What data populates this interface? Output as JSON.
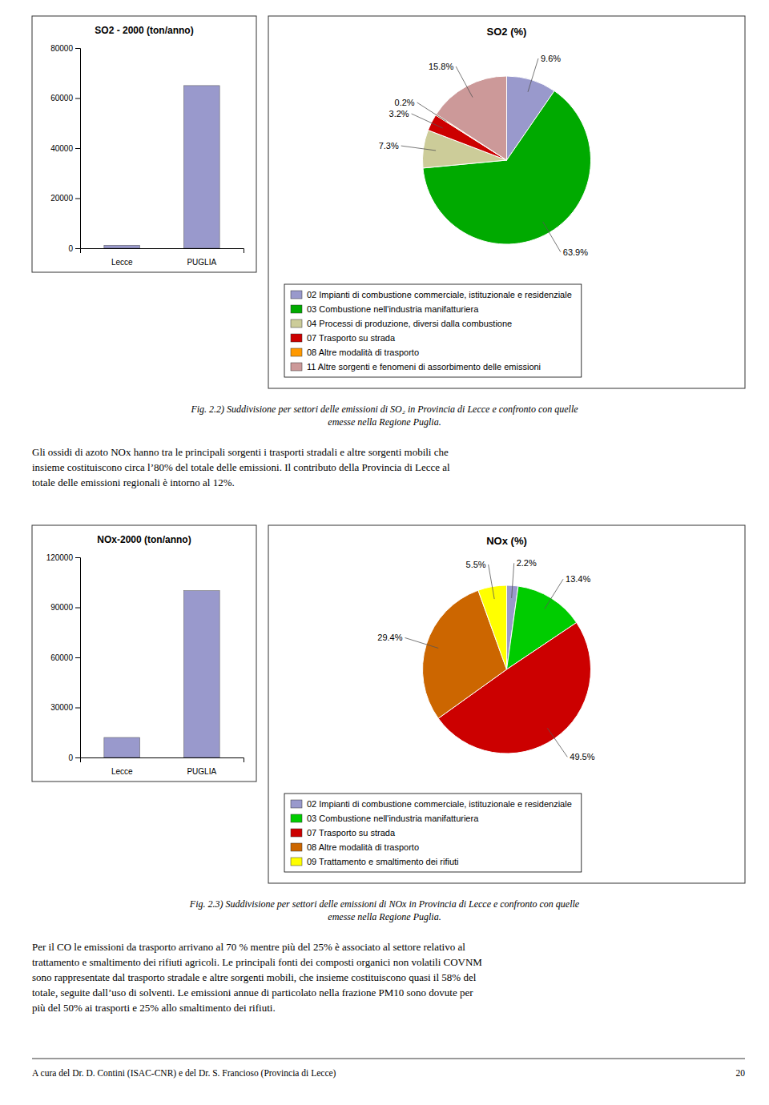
{
  "chart_data": [
    {
      "type": "bar",
      "title": "SO2 - 2000 (ton/anno)",
      "categories": [
        "Lecce",
        "PUGLIA"
      ],
      "values": [
        1200,
        65000
      ],
      "color": "#9999cc",
      "ylim": [
        0,
        80000
      ],
      "yticks": [
        0,
        20000,
        40000,
        60000,
        80000
      ],
      "grid": false
    },
    {
      "type": "pie",
      "title": "SO2 (%)",
      "categories": [
        "02 Impianti di combustione commerciale, istituzionale e residenziale",
        "03 Combustione nell'industria manifatturiera",
        "04 Processi di produzione, diversi dalla combustione",
        "07 Trasporto su strada",
        "08 Altre modalità di trasporto",
        "11 Altre sorgenti e fenomeni di assorbimento delle emissioni"
      ],
      "values": [
        9.6,
        63.9,
        7.3,
        3.2,
        0.2,
        15.8
      ],
      "value_labels": [
        "9.6%",
        "63.9%",
        "7.3%",
        "3.2%",
        "0.2%",
        "15.8%"
      ],
      "colors": [
        "#9999cc",
        "#00aa00",
        "#cccc99",
        "#cc0000",
        "#ff9900",
        "#cc9999"
      ],
      "data_labels": true,
      "legend": "bottom"
    },
    {
      "type": "bar",
      "title": "NOx-2000 (ton/anno)",
      "categories": [
        "Lecce",
        "PUGLIA"
      ],
      "values": [
        12000,
        100000
      ],
      "color": "#9999cc",
      "ylim": [
        0,
        120000
      ],
      "yticks": [
        0,
        30000,
        60000,
        90000,
        120000
      ],
      "grid": false
    },
    {
      "type": "pie",
      "title": "NOx (%)",
      "categories": [
        "02 Impianti di combustione commerciale, istituzionale e residenziale",
        "03 Combustione nell'industria manifatturiera",
        "07 Trasporto su strada",
        "08 Altre modalità di trasporto",
        "09 Trattamento e smaltimento dei rifiuti"
      ],
      "values": [
        2.2,
        13.4,
        49.5,
        29.4,
        5.5
      ],
      "value_labels": [
        "2.2%",
        "13.4%",
        "49.5%",
        "29.4%",
        "5.5%"
      ],
      "colors": [
        "#9999cc",
        "#00cc00",
        "#cc0000",
        "#cc6600",
        "#ffff00"
      ],
      "data_labels": true,
      "legend": "bottom"
    }
  ],
  "captions": [
    [
      "Fig. 2.2) Suddivisione per settori delle emissioni di SO₂ in Provincia di Lecce e confronto con quelle",
      "emesse nella Regione Puglia."
    ],
    [
      "Fig. 2.3) Suddivisione per settori delle emissioni di NOx in Provincia di Lecce e confronto con quelle",
      "emesse nella Regione Puglia."
    ]
  ],
  "paragraphs": [
    [
      "Gli ossidi di azoto NOx hanno tra le principali sorgenti i trasporti stradali e altre sorgenti mobili che",
      "insieme costituiscono circa l’80% del totale delle emissioni. Il contributo della Provincia di Lecce al",
      "totale delle emissioni regionali è intorno al 12%."
    ],
    [
      "Per il CO le emissioni da trasporto arrivano al 70 % mentre più del 25% è associato al settore relativo al",
      "trattamento e smaltimento dei rifiuti agricoli. Le principali fonti dei composti organici non volatili COVNM",
      "sono rappresentate dal trasporto stradale e altre sorgenti mobili, che insieme costituiscono quasi il 58% del",
      "totale, seguite dall’uso di solventi. Le emissioni annue di particolato nella frazione PM10 sono dovute per",
      "più del 50% ai trasporti e 25% allo smaltimento dei rifiuti."
    ]
  ],
  "footer": [
    "A cura del Dr. D. Contini (ISAC-CNR) e del Dr. S. Francioso (Provincia di Lecce)",
    "20"
  ]
}
